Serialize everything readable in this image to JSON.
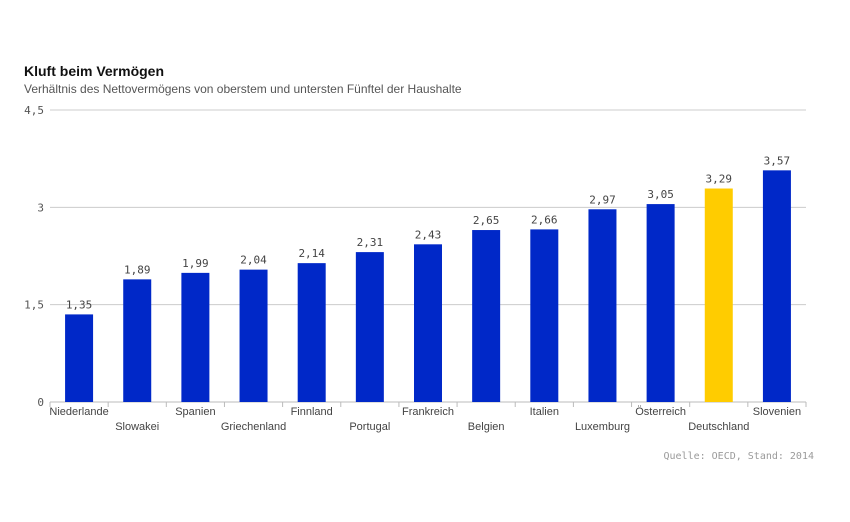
{
  "chart_data": {
    "type": "bar",
    "title": "Kluft beim Vermögen",
    "subtitle": "Verhältnis des Nettovermögens von oberstem und untersten Fünftel der Haushalte",
    "source": "Quelle: OECD, Stand: 2014",
    "categories": [
      "Niederlande",
      "Slowakei",
      "Spanien",
      "Griechenland",
      "Finnland",
      "Portugal",
      "Frankreich",
      "Belgien",
      "Italien",
      "Luxemburg",
      "Österreich",
      "Deutschland",
      "Slovenien"
    ],
    "values": [
      1.35,
      1.89,
      1.99,
      2.04,
      2.14,
      2.31,
      2.43,
      2.65,
      2.66,
      2.97,
      3.05,
      3.29,
      3.57
    ],
    "value_labels": [
      "1,35",
      "1,89",
      "1,99",
      "2,04",
      "2,14",
      "2,31",
      "2,43",
      "2,65",
      "2,66",
      "2,97",
      "3,05",
      "3,29",
      "3,57"
    ],
    "highlight": "Deutschland",
    "ylim": [
      0,
      4.5
    ],
    "yticks": [
      0,
      1.5,
      3,
      4.5
    ],
    "ytick_labels": [
      "0",
      "1,5",
      "3",
      "4,5"
    ],
    "grid": true,
    "colors": {
      "bar": "#0028c8",
      "highlight": "#ffcc00",
      "grid": "#cccccc",
      "axis": "#bbbbbb"
    }
  }
}
